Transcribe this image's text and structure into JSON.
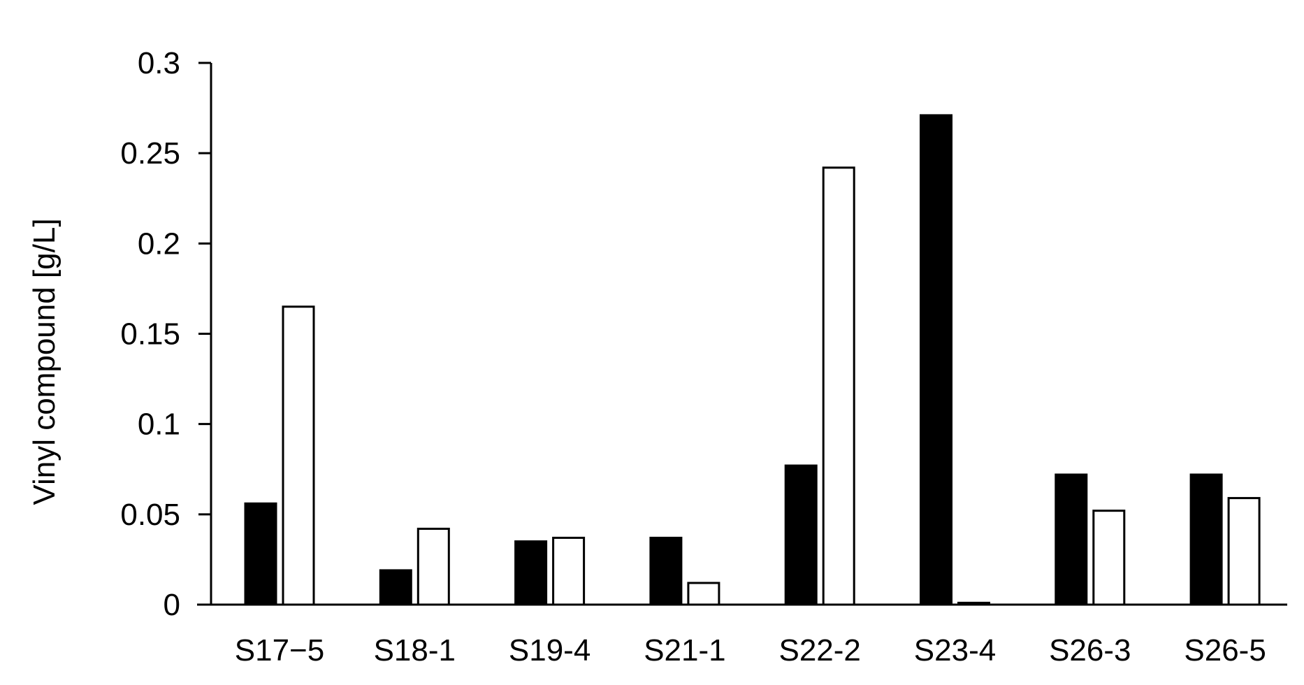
{
  "chart_data": {
    "type": "bar",
    "title": "",
    "xlabel": "",
    "ylabel": "Vinyl compound [g/L]",
    "ylim": [
      0,
      0.3
    ],
    "yticks": [
      "0",
      "0.05",
      "0.1",
      "0.15",
      "0.2",
      "0.25",
      "0.3"
    ],
    "categories": [
      "S17−5",
      "S18-1",
      "S19-4",
      "S21-1",
      "S22-2",
      "S23-4",
      "S26-3",
      "S26-5"
    ],
    "series": [
      {
        "fill": "#000000",
        "values": [
          0.056,
          0.019,
          0.035,
          0.037,
          0.077,
          0.271,
          0.072,
          0.072
        ]
      },
      {
        "fill": "#ffffff",
        "values": [
          0.165,
          0.042,
          0.037,
          0.012,
          0.242,
          0.001,
          0.052,
          0.059
        ]
      }
    ],
    "grid": false,
    "legend": "none"
  }
}
